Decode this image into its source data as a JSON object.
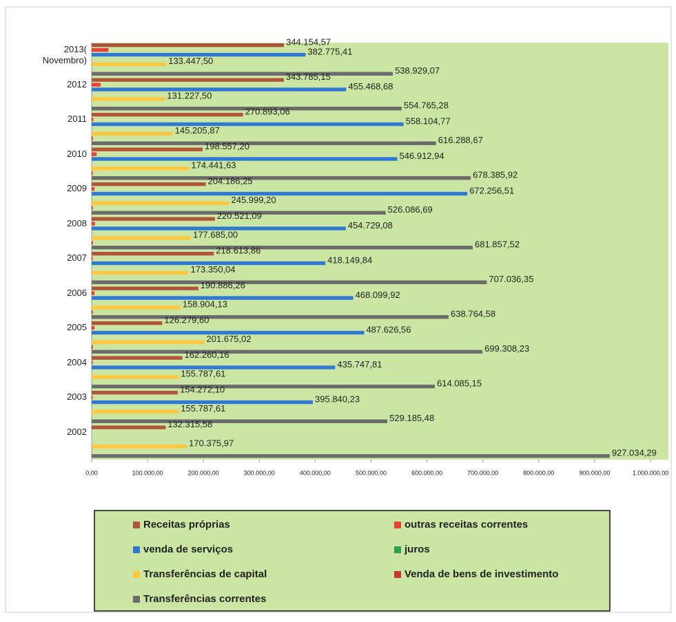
{
  "chart_data": {
    "type": "hbar",
    "categories": [
      "2013( Novembro)",
      "2012",
      "2011",
      "2010",
      "2009",
      "2008",
      "2007",
      "2006",
      "2005",
      "2004",
      "2003",
      "2002"
    ],
    "series": [
      {
        "name": "Receitas próprias",
        "color": "#b0553a",
        "values": [
          344154.57,
          343785.15,
          270893.06,
          198557.2,
          204186.25,
          220521.09,
          218613.86,
          190886.26,
          126279.6,
          162260.16,
          154272.1,
          132315.58
        ],
        "value_labels": [
          "344.154,57",
          "343.785,15",
          "270.893,06",
          "198.557,20",
          "204.186,25",
          "220.521,09",
          "218.613,86",
          "190.886,26",
          "126.279,60",
          "162.260,16",
          "154.272,10",
          "132.315,58"
        ]
      },
      {
        "name": "outras receitas correntes",
        "color": "#e8413a",
        "values": [
          30000,
          16000,
          3000,
          9000,
          5000,
          6000,
          2000,
          5000,
          5000,
          2000,
          2000,
          0
        ]
      },
      {
        "name": "venda de serviços",
        "color": "#2f78d4",
        "values": [
          382775.41,
          455468.68,
          558104.77,
          546912.94,
          672256.51,
          454729.08,
          418149.84,
          468099.92,
          487626.56,
          435747.81,
          395840.23,
          null
        ],
        "value_labels": [
          "382.775,41",
          "455.468,68",
          "558.104,77",
          "546.912,94",
          "672.256,51",
          "454.729,08",
          "418.149,84",
          "468.099,92",
          "487.626,56",
          "435.747,81",
          "395.840,23",
          null
        ]
      },
      {
        "name": "juros",
        "color": "#2e9e4f",
        "values": [
          0,
          0,
          0,
          0,
          0,
          0,
          0,
          0,
          0,
          0,
          0,
          0
        ]
      },
      {
        "name": "Transferências de capital",
        "color": "#ffc740",
        "values": [
          133447.5,
          131227.5,
          145205.87,
          174441.63,
          245999.2,
          177685.0,
          173350.04,
          158904.13,
          201675.02,
          155787.61,
          155787.61,
          170375.97
        ],
        "value_labels": [
          "133.447,50",
          "131.227,50",
          "145.205,87",
          "174.441,63",
          "245.999,20",
          "177.685,00",
          "173.350,04",
          "158.904,13",
          "201.675,02",
          "155.787,61",
          "155.787,61",
          "170.375,97"
        ]
      },
      {
        "name": "Venda de bens de investimento",
        "color": "#c8362e",
        "values": [
          0,
          0,
          2000,
          2000,
          2000,
          2000,
          0,
          2000,
          2000,
          0,
          0,
          0
        ]
      },
      {
        "name": "Transferências correntes",
        "color": "#6b6b6b",
        "values": [
          538929.07,
          554765.28,
          616288.67,
          678385.92,
          526086.69,
          681857.52,
          707036.35,
          638764.58,
          699308.23,
          614085.15,
          529185.48,
          927034.29
        ],
        "value_labels": [
          "538.929,07",
          "554.765,28",
          "616.288,67",
          "678.385,92",
          "526.086,69",
          "681.857,52",
          "707.036,35",
          "638.764,58",
          "699.308,23",
          "614.085,15",
          "529.185,48",
          "927.034,29"
        ]
      }
    ],
    "xlim": [
      0,
      1000000
    ],
    "xticks": [
      {
        "value": 0,
        "label": "0,00"
      },
      {
        "value": 100000,
        "label": "100.000,00"
      },
      {
        "value": 200000,
        "label": "200.000,00"
      },
      {
        "value": 300000,
        "label": "300.000,00"
      },
      {
        "value": 400000,
        "label": "400.000,00"
      },
      {
        "value": 500000,
        "label": "500.000,00"
      },
      {
        "value": 600000,
        "label": "600.000,00"
      },
      {
        "value": 700000,
        "label": "700.000,00"
      },
      {
        "value": 800000,
        "label": "800.000,00"
      },
      {
        "value": 900000,
        "label": "900.000,00"
      },
      {
        "value": 1000000,
        "label": "1.000.000,00"
      }
    ],
    "legend": "bottom"
  }
}
